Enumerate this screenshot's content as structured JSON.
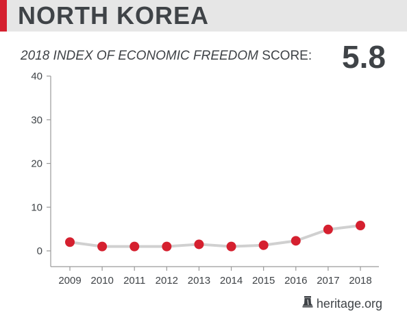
{
  "header": {
    "country": "NORTH KOREA",
    "accent_color": "#d5202f",
    "background_color": "#e6e6e6"
  },
  "subtitle": {
    "italic_part": "2018 INDEX OF ECONOMIC FREEDOM",
    "regular_part": " SCORE:"
  },
  "score": "5.8",
  "footer": {
    "source": "heritage.org",
    "icon": "liberty-bell-icon"
  },
  "chart_data": {
    "type": "line",
    "x": [
      "2009",
      "2010",
      "2011",
      "2012",
      "2013",
      "2014",
      "2015",
      "2016",
      "2017",
      "2018"
    ],
    "series": [
      {
        "values": [
          2.0,
          1.0,
          1.0,
          1.0,
          1.5,
          1.0,
          1.3,
          2.3,
          4.9,
          5.8
        ]
      }
    ],
    "yticks": [
      0,
      10,
      20,
      30,
      40
    ],
    "ylim": [
      0,
      40
    ],
    "xlabel": "",
    "ylabel": "",
    "grid": false,
    "line_color": "#d0d0d0",
    "marker_color": "#d5202f",
    "axis_color": "#9a9a9a"
  }
}
